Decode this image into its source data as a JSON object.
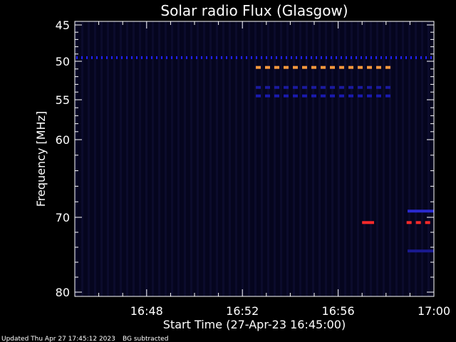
{
  "chart_data": {
    "type": "heatmap",
    "title": "Solar radio Flux (Glasgow)",
    "ylabel": "Frequency [MHz]",
    "xlabel": "Start Time (27-Apr-23 16:45:00)",
    "x_start": "16:45",
    "x_end": "17:00",
    "xlim_minutes": [
      0,
      15
    ],
    "ylim": [
      45,
      80
    ],
    "ytick_values": [
      45,
      50,
      55,
      60,
      70,
      80
    ],
    "ytick_labels": [
      "45",
      "50",
      "55",
      "60",
      "70",
      "80"
    ],
    "xtick_labels": [
      "16:48",
      "16:52",
      "16:56",
      "17:00"
    ],
    "xtick_minutes": [
      3,
      7,
      11,
      15
    ],
    "background_color": "#05051e",
    "features": [
      {
        "name": "blue line ~49.5 MHz",
        "freq": 49.5,
        "t0": 0,
        "t1": 15,
        "color": "#2020ff",
        "dashed": true
      },
      {
        "name": "orange dashes ~50.8 MHz",
        "freq": 50.8,
        "t0": 7.5,
        "t1": 13.2,
        "color": "#ff9a3c",
        "dashed": true
      },
      {
        "name": "blue dashes ~53.4 MHz",
        "freq": 53.4,
        "t0": 7.5,
        "t1": 13.2,
        "color": "#1a1aa0",
        "dashed": true
      },
      {
        "name": "blue dashes ~54.5 MHz",
        "freq": 54.5,
        "t0": 7.5,
        "t1": 13.2,
        "color": "#1a1ab0",
        "dashed": true
      },
      {
        "name": "red band ~70.7 MHz A",
        "freq": 70.7,
        "t0": 12.0,
        "t1": 12.5,
        "color": "#ff2a2a",
        "dashed": false
      },
      {
        "name": "red band ~70.7 MHz B",
        "freq": 70.7,
        "t0": 13.8,
        "t1": 15,
        "color": "#ff2a2a",
        "dashed": true
      },
      {
        "name": "blue band ~69.2 MHz",
        "freq": 69.2,
        "t0": 13.9,
        "t1": 15,
        "color": "#2a2ad0",
        "dashed": false
      },
      {
        "name": "blue band ~74.5 MHz",
        "freq": 74.5,
        "t0": 13.9,
        "t1": 15,
        "color": "#1a1a90",
        "dashed": false
      }
    ]
  },
  "footer": {
    "updated": "Updated Thu Apr 27 17:45:12 2023",
    "note": "BG subtracted"
  }
}
